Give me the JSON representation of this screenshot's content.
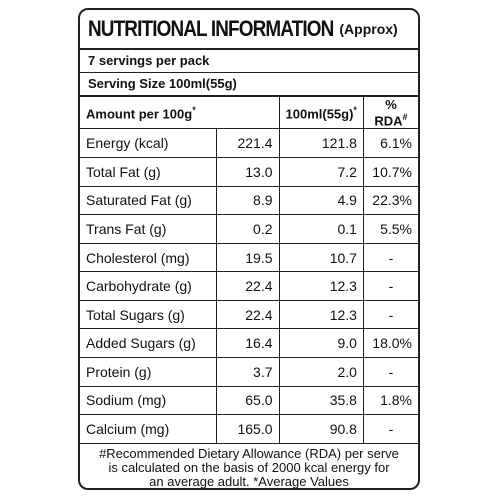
{
  "header": {
    "title": "NUTRITIONAL INFORMATION",
    "title_note": "(Approx)"
  },
  "servings": "7 servings per pack",
  "serving_size": "Serving Size 100ml(55g)",
  "table": {
    "columns": [
      {
        "text": "Amount per 100g",
        "mark": "*"
      },
      {
        "text": "100ml(55g)",
        "mark": "*"
      },
      {
        "text": "% RDA",
        "mark": "#"
      }
    ],
    "rows": [
      [
        "Energy (kcal)",
        "221.4",
        "121.8",
        "6.1%"
      ],
      [
        "Total Fat (g)",
        "13.0",
        "7.2",
        "10.7%"
      ],
      [
        "Saturated Fat (g)",
        "8.9",
        "4.9",
        "22.3%"
      ],
      [
        "Trans Fat (g)",
        "0.2",
        "0.1",
        "5.5%"
      ],
      [
        "Cholesterol (mg)",
        "19.5",
        "10.7",
        "-"
      ],
      [
        "Carbohydrate (g)",
        "22.4",
        "12.3",
        "-"
      ],
      [
        "Total Sugars (g)",
        "22.4",
        "12.3",
        "-"
      ],
      [
        "Added Sugars (g)",
        "16.4",
        "9.0",
        "18.0%"
      ],
      [
        "Protein (g)",
        "3.7",
        "2.0",
        "-"
      ],
      [
        "Sodium (mg)",
        "65.0",
        "35.8",
        "1.8%"
      ],
      [
        "Calcium (mg)",
        "165.0",
        "90.8",
        "-"
      ]
    ]
  },
  "footer": [
    "#Recommended Dietary Allowance (RDA) per serve",
    "is calculated on the basis of 2000 kcal energy for",
    "an average adult. *Average Values"
  ]
}
